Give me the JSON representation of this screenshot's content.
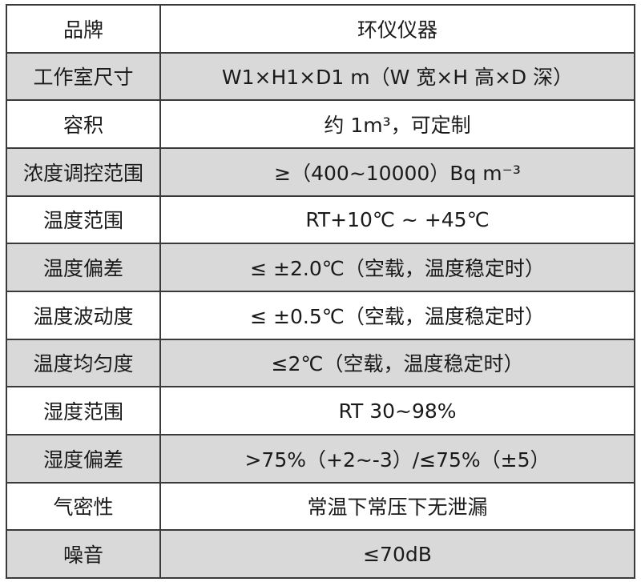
{
  "table": {
    "rows": [
      [
        "品牌",
        "环仪仪器"
      ],
      [
        "工作室尺寸",
        "W1×H1×D1 m（W 宽×H 高×D 深）"
      ],
      [
        "容积",
        "约 1m³，可定制"
      ],
      [
        "浓度调控范围",
        "≥（400~10000）Bq m⁻³"
      ],
      [
        "温度范围",
        "RT+10℃ ~ +45℃"
      ],
      [
        "温度偏差",
        "≤ ±2.0℃（空载，温度稳定时）"
      ],
      [
        "温度波动度",
        "≤ ±0.5℃（空载，温度稳定时）"
      ],
      [
        "温度均匀度",
        "≤2℃（空载，温度稳定时）"
      ],
      [
        "湿度范围",
        "RT 30~98%"
      ],
      [
        "湿度偏差",
        ">75%（+2~-3）/≤75%（±5）"
      ],
      [
        "气密性",
        "常温下常压下无泄漏"
      ],
      [
        "噪音",
        "≤70dB"
      ]
    ]
  }
}
